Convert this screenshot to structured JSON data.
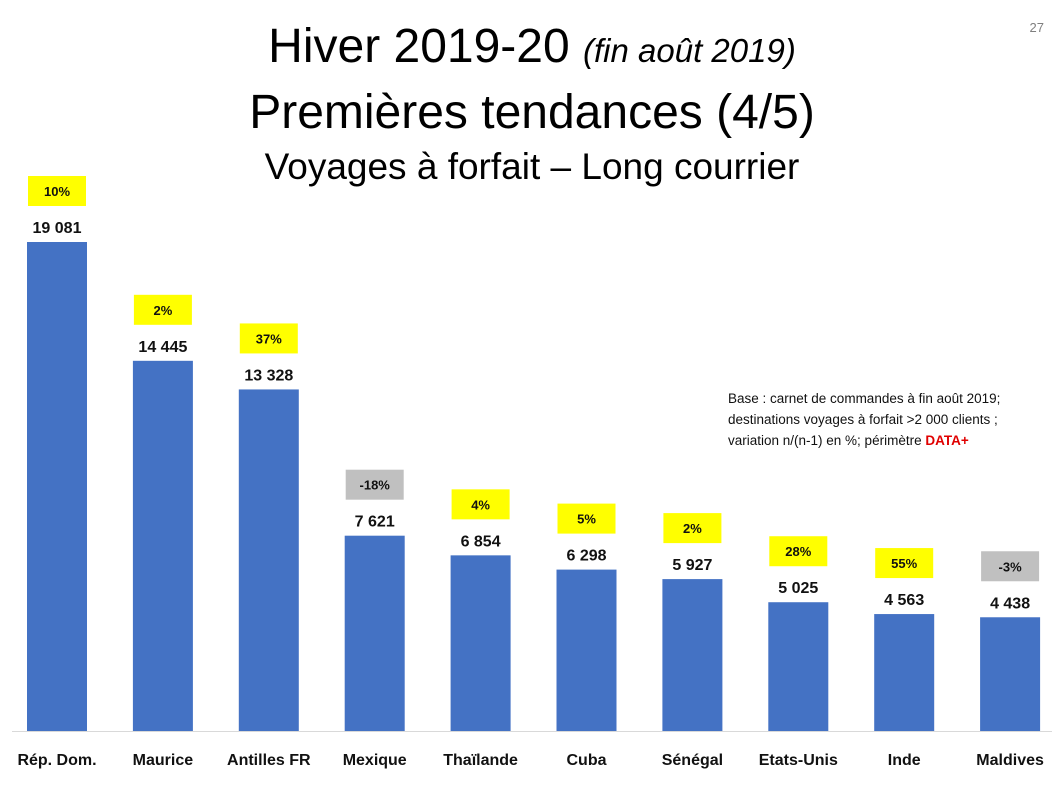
{
  "slide_number": "27",
  "title": {
    "line1_main": "Hiver 2019-20",
    "line1_sub": "(fin août 2019)",
    "line2": "Premières tendances (4/5)",
    "line3": "Voyages à forfait – Long courrier"
  },
  "note": {
    "line1": "Base : carnet de commandes à fin août 2019;",
    "line2": "destinations voyages à forfait >2 000 clients ;",
    "line3_prefix": "variation n/(n-1) en %; périmètre ",
    "line3_brand": "DATA+"
  },
  "chart_data": {
    "type": "bar",
    "title": "",
    "xlabel": "",
    "ylabel": "",
    "ylim": [
      0,
      19081
    ],
    "categories": [
      "Rép. Dom.",
      "Maurice",
      "Antilles FR",
      "Mexique",
      "Thaïlande",
      "Cuba",
      "Sénégal",
      "Etats-Unis",
      "Inde",
      "Maldives"
    ],
    "values": [
      19081,
      14445,
      13328,
      7621,
      6854,
      6298,
      5927,
      5025,
      4563,
      4438
    ],
    "value_labels": [
      "19 081",
      "14 445",
      "13 328",
      "7 621",
      "6 854",
      "6 298",
      "5 927",
      "5 025",
      "4 563",
      "4 438"
    ],
    "variations": [
      "10%",
      "2%",
      "37%",
      "-18%",
      "4%",
      "5%",
      "2%",
      "28%",
      "55%",
      "-3%"
    ],
    "bar_color": "#4472c4",
    "positive_badge_color": "#ffff00",
    "negative_badge_color": "#c0c0c0",
    "grid": false,
    "legend": "none"
  }
}
